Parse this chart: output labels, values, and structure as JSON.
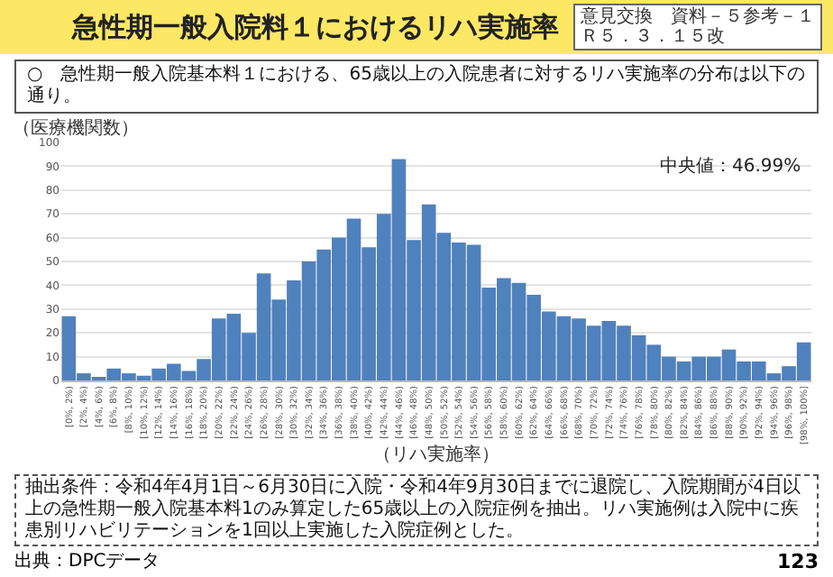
{
  "chart_data": {
    "type": "bar",
    "title": "急性期一般入院料１におけるリハ実施率",
    "subtitle": "○　急性期一般入院基本料１における、65歳以上の入院患者に対するリハ実施率の分布は以下の通り。",
    "ylabel": "（医療機関数）",
    "xlabel": "（リハ実施率）",
    "categories": [
      "[0%, 2%)",
      "[2%, 4%)",
      "[4%, 6%)",
      "[6%, 8%)",
      "[8%, 10%)",
      "[10%, 12%)",
      "[12%, 14%)",
      "[14%, 16%)",
      "[16%, 18%)",
      "[18%, 20%)",
      "[20%, 22%)",
      "[22%, 24%)",
      "[24%, 26%)",
      "[26%, 28%)",
      "[28%, 30%)",
      "[30%, 32%)",
      "[32%, 34%)",
      "[34%, 36%)",
      "[36%, 38%)",
      "[38%, 40%)",
      "[40%, 42%)",
      "[42%, 44%)",
      "[44%, 46%)",
      "[46%, 48%)",
      "[48%, 50%)",
      "[50%, 52%)",
      "[52%, 54%)",
      "[54%, 56%)",
      "[56%, 58%)",
      "[58%, 60%)",
      "[60%, 62%)",
      "[62%, 64%)",
      "[64%, 66%)",
      "[66%, 68%)",
      "[68%, 70%)",
      "[70%, 72%)",
      "[72%, 74%)",
      "[74%, 76%)",
      "[76%, 78%)",
      "[78%, 80%)",
      "[80%, 82%)",
      "[82%, 84%)",
      "[84%, 86%)",
      "[86%, 88%)",
      "[88%, 90%)",
      "[90%, 92%)",
      "[92%, 94%)",
      "[94%, 96%)",
      "[96%, 98%)",
      "[98%, 100%]"
    ],
    "values": [
      27,
      3,
      1,
      5,
      3,
      2,
      5,
      7,
      4,
      9,
      26,
      28,
      20,
      45,
      34,
      42,
      50,
      55,
      60,
      68,
      56,
      70,
      93,
      59,
      74,
      62,
      58,
      57,
      39,
      43,
      41,
      36,
      29,
      27,
      26,
      23,
      25,
      23,
      19,
      15,
      10,
      8,
      10,
      10,
      13,
      8,
      8,
      3,
      6,
      16
    ],
    "color": "#4f81bd",
    "ylim": [
      0,
      100
    ],
    "yticks": [
      0,
      10,
      20,
      30,
      40,
      50,
      60,
      70,
      80,
      90,
      100
    ],
    "grid": "y",
    "annotations": [
      "意見交換　資料－５参考－１",
      "Ｒ５．３．１５改",
      "中央値：46.99%",
      "抽出条件：令和4年4月1日～6月30日に入院・令和4年9月30日までに退院し、入院期間が4日以上の急性期一般入院基本料1のみ算定した65歳以上の入院症例を抽出。リハ実施例は入院中に疾患別リハビリテーションを1回以上実施した入院症例とした。",
      "出典：DPCデータ",
      "123"
    ]
  }
}
